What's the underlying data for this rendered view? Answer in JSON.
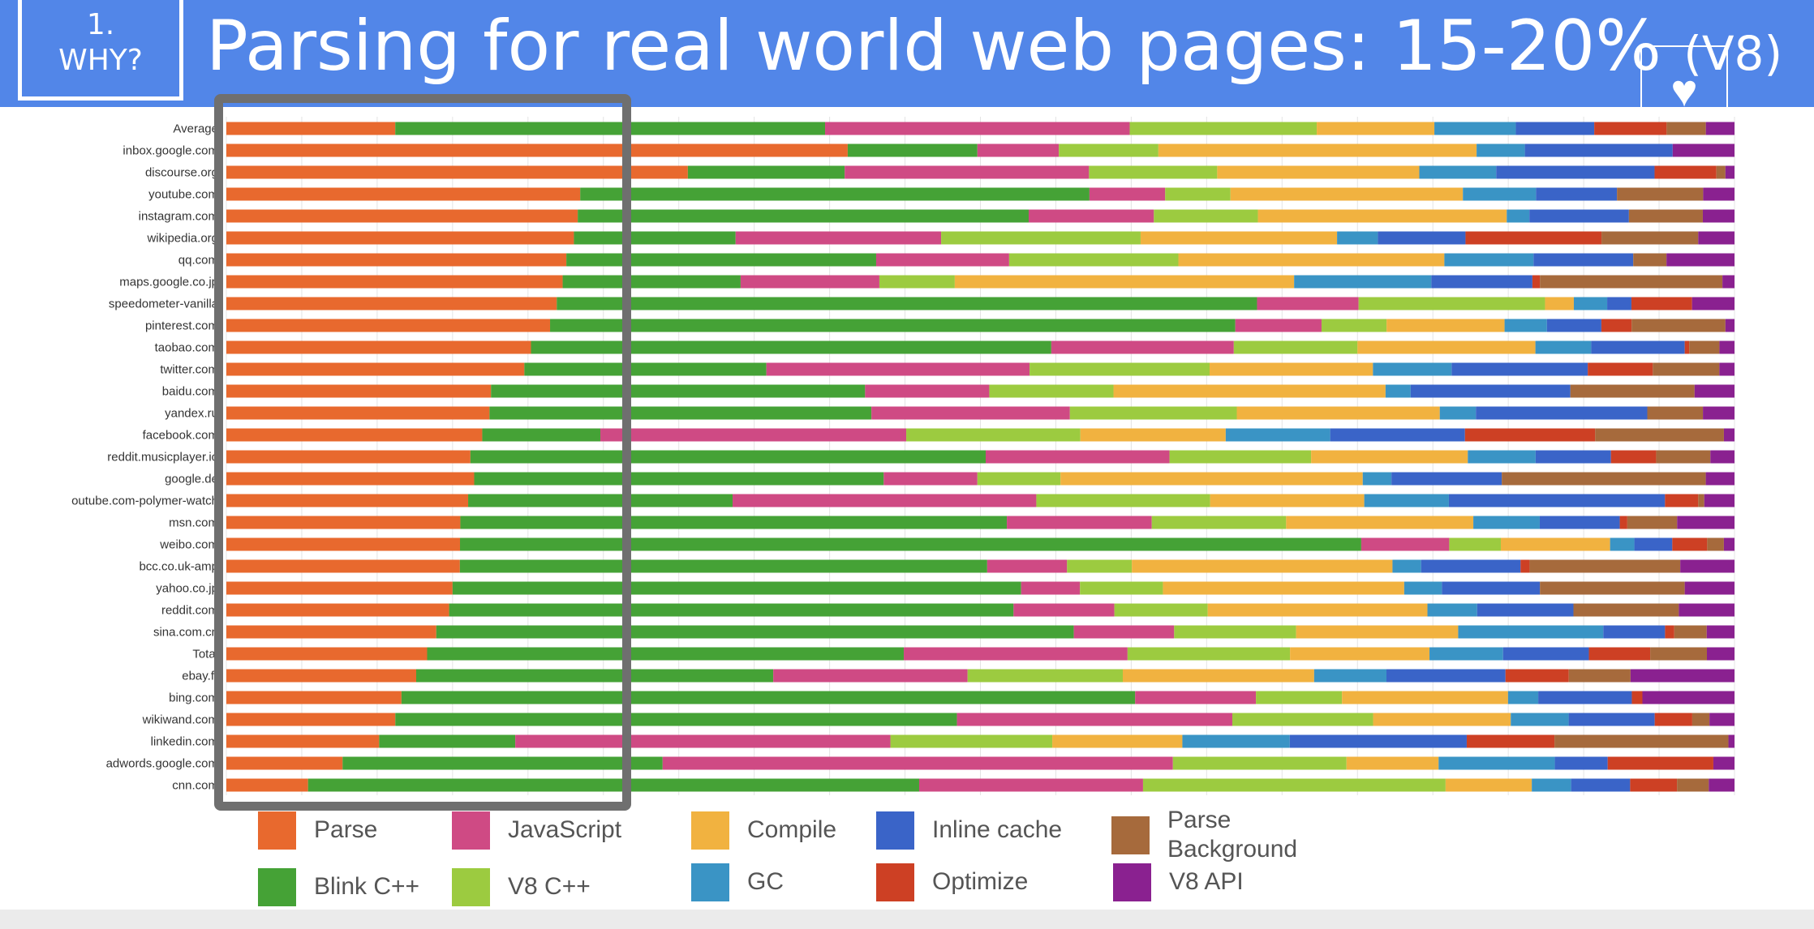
{
  "slide": {
    "section_number": "1.",
    "section_label": "WHY?",
    "title": "Parsing for real world web pages: 15-20%",
    "title_suffix": "(V8)"
  },
  "heart_icon": "heart-icon",
  "colors": {
    "header_background": "#5286e8",
    "highlight_border": "#6f6f6f",
    "text": "#555555"
  },
  "chart_data": {
    "type": "bar",
    "orientation": "horizontal",
    "stacked": true,
    "normalized": true,
    "categories": [
      "Average",
      "inbox.google.com",
      "discourse.org",
      "youtube.com",
      "instagram.com",
      "wikipedia.org",
      "qq.com",
      "maps.google.co.jp",
      "speedometer-vanilla",
      "pinterest.com",
      "taobao.com",
      "twitter.com",
      "baidu.com",
      "yandex.ru",
      "facebook.com",
      "reddit.musicplayer.io",
      "google.de",
      "youtube.com-polymer-watch",
      "msn.com",
      "weibo.com",
      "bcc.co.uk-amp",
      "yahoo.co.jp",
      "reddit.com",
      "sina.com.cn",
      "Total",
      "ebay.fr",
      "bing.com",
      "wikiwand.com",
      "linkedin.com",
      "adwords.google.com",
      "cnn.com"
    ],
    "category_display": [
      "Average",
      "inbox.google.com",
      "discourse.org",
      "youtube.com",
      "instagram.com",
      "wikipedia.org",
      "qq.com",
      "maps.google.co.jp",
      "speedometer-vanilla",
      "pinterest.com",
      "taobao.com",
      "twitter.com",
      "baidu.com",
      "yandex.ru",
      "facebook.com",
      "reddit.musicplayer.io",
      "google.de",
      "outube.com-polymer-watch",
      "msn.com",
      "weibo.com",
      "bcc.co.uk-amp",
      "yahoo.co.jp",
      "reddit.com",
      "sina.com.cn",
      "Total",
      "ebay.fr",
      "bing.com",
      "wikiwand.com",
      "linkedin.com",
      "adwords.google.com",
      "cnn.com"
    ],
    "series": [
      {
        "name": "Parse",
        "color": "#e8692e",
        "values": [
          11.2,
          41.2,
          30.6,
          27.1,
          23.3,
          23.0,
          22.5,
          22.3,
          21.8,
          21.4,
          20.2,
          19.7,
          17.9,
          17.5,
          16.9,
          16.2,
          16.4,
          16.0,
          15.5,
          15.4,
          15.5,
          15.0,
          14.8,
          13.6,
          13.1,
          12.6,
          11.6,
          10.8,
          10.1,
          7.7,
          5.4
        ]
      },
      {
        "name": "Blink C++",
        "color": "#45a236",
        "values": [
          28.5,
          8.6,
          10.4,
          39.0,
          29.9,
          10.7,
          20.5,
          11.8,
          46.2,
          45.3,
          34.5,
          16.0,
          25.3,
          25.4,
          7.8,
          34.2,
          27.1,
          17.5,
          36.2,
          59.4,
          35.0,
          37.7,
          37.5,
          41.3,
          31.1,
          23.7,
          48.6,
          35.9,
          9.0,
          21.2,
          40.4
        ]
      },
      {
        "name": "JavaScript",
        "color": "#cf4a84",
        "values": [
          20.2,
          5.4,
          16.2,
          5.8,
          8.3,
          13.6,
          8.8,
          9.2,
          6.7,
          5.7,
          12.1,
          17.4,
          8.4,
          13.2,
          20.2,
          12.2,
          6.2,
          20.1,
          9.6,
          5.8,
          5.3,
          3.9,
          6.7,
          6.5,
          14.6,
          12.9,
          8.0,
          17.6,
          24.8,
          33.8,
          14.8
        ]
      },
      {
        "name": "V8 C++",
        "color": "#9ccb40",
        "values": [
          12.4,
          6.6,
          8.5,
          5.0,
          6.9,
          13.2,
          11.2,
          5.0,
          12.3,
          4.3,
          8.2,
          11.9,
          8.4,
          11.1,
          11.5,
          9.4,
          5.5,
          11.5,
          8.9,
          3.4,
          4.3,
          5.5,
          6.2,
          7.9,
          10.6,
          10.3,
          5.7,
          9.0,
          10.7,
          11.5,
          20.0
        ]
      },
      {
        "name": "Compile",
        "color": "#f1b240",
        "values": [
          7.8,
          21.1,
          13.4,
          17.8,
          16.5,
          13.0,
          17.6,
          22.5,
          1.9,
          7.8,
          11.8,
          10.8,
          18.4,
          13.5,
          9.6,
          10.4,
          20.0,
          10.2,
          12.4,
          7.2,
          17.3,
          16.0,
          14.6,
          10.5,
          9.1,
          12.7,
          11.0,
          8.8,
          8.6,
          6.1,
          5.7
        ]
      },
      {
        "name": "GC",
        "color": "#3a94c5",
        "values": [
          5.4,
          3.2,
          5.1,
          5.6,
          1.5,
          2.7,
          5.9,
          9.1,
          2.2,
          2.8,
          3.7,
          5.2,
          1.7,
          2.4,
          6.9,
          4.5,
          1.9,
          5.6,
          4.4,
          1.6,
          1.9,
          2.5,
          3.3,
          9.4,
          4.8,
          4.8,
          2.0,
          3.7,
          7.1,
          7.7,
          2.6
        ]
      },
      {
        "name": "Inline cache",
        "color": "#3a64c8",
        "values": [
          5.2,
          9.8,
          10.5,
          6.2,
          6.6,
          5.8,
          6.6,
          6.7,
          1.6,
          3.6,
          6.2,
          9.0,
          10.8,
          11.4,
          8.9,
          5.0,
          7.3,
          14.3,
          5.3,
          2.5,
          6.6,
          6.5,
          6.4,
          4.0,
          5.6,
          7.9,
          6.2,
          5.5,
          11.7,
          3.5,
          3.9
        ]
      },
      {
        "name": "Optimize",
        "color": "#cd4024",
        "values": [
          4.8,
          0,
          4.1,
          0,
          0,
          9.0,
          0,
          0.5,
          4.0,
          2.0,
          0.3,
          4.3,
          0,
          0,
          8.6,
          3.0,
          0,
          2.2,
          0.5,
          2.3,
          0.6,
          0,
          0,
          0.6,
          4.0,
          4.2,
          0.7,
          2.4,
          5.8,
          7.0,
          3.1
        ]
      },
      {
        "name": "Parse Background",
        "color": "#a66a3c",
        "values": [
          2.6,
          0,
          0.6,
          6.6,
          4.9,
          6.4,
          2.2,
          12.1,
          0,
          6.2,
          2.0,
          4.4,
          8.4,
          3.7,
          8.5,
          3.6,
          13.5,
          0.4,
          3.3,
          1.1,
          10.0,
          9.6,
          7.0,
          2.1,
          3.7,
          4.1,
          0,
          1.1,
          11.5,
          0,
          2.1
        ]
      },
      {
        "name": "V8 API",
        "color": "#8a2190",
        "values": [
          1.9,
          4.1,
          0.6,
          2.4,
          2.1,
          2.4,
          4.5,
          0.8,
          2.8,
          0.6,
          1.0,
          1.0,
          2.7,
          2.1,
          0.7,
          1.6,
          1.9,
          2.0,
          3.8,
          0.7,
          3.6,
          3.3,
          3.7,
          1.8,
          1.8,
          6.9,
          6.1,
          1.6,
          0.4,
          1.4,
          1.7
        ]
      }
    ],
    "legend": [
      "Parse",
      "JavaScript",
      "Compile",
      "Inline cache",
      "Parse\nBackground",
      "Blink C++",
      "V8 C++",
      "GC",
      "Optimize",
      "V8 API"
    ],
    "legend_placement": "bottom",
    "xlim": [
      0,
      100
    ],
    "grid": true,
    "highlighted_region": "Parse"
  }
}
